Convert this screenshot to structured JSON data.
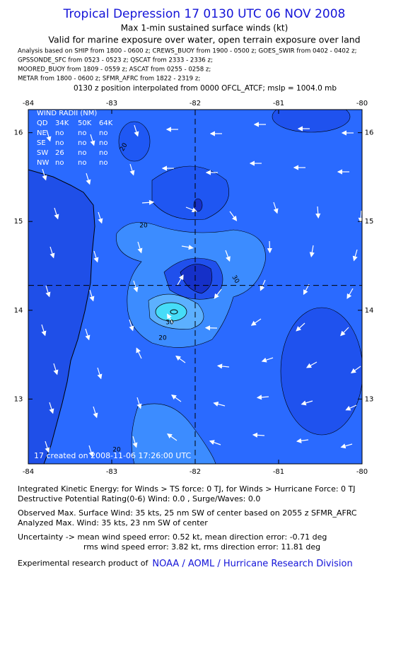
{
  "header": {
    "title": "Tropical Depression 17 0130 UTC 06 NOV 2008",
    "subtitle": "Max 1-min sustained surface winds (kt)",
    "validity": "Valid for marine exposure over water, open terrain exposure over land",
    "analysis": [
      "Analysis based on  SHIP from 1800 - 0600 z;  CREWS_BUOY from 1900 - 0500 z;  GOES_SWIR from 0402 - 0402 z;",
      "GPSSONDE_SFC from 0523 - 0523 z;  QSCAT from 2333 - 2336 z;",
      "MOORED_BUOY from 1809 - 0559 z;  ASCAT from 0255 - 0258 z;",
      "METAR from 1800 - 0600 z;  SFMR_AFRC from 1822 - 2319 z;"
    ],
    "position_note": "0130 z position interpolated from 0000 OFCL_ATCF; mslp = 1004.0 mb"
  },
  "map": {
    "xlim": [
      -84,
      -80
    ],
    "ylim": [
      12.27,
      16.26
    ],
    "xticks": [
      -84,
      -83,
      -82,
      -81,
      -80
    ],
    "yticks": [
      13,
      14,
      15,
      16
    ],
    "center": {
      "lon": -82.0,
      "lat": 14.28
    },
    "contour_labels": [
      "20",
      "20",
      "30",
      "20",
      "30",
      "20"
    ],
    "wind_radii": {
      "title": "WIND RADII (NM)",
      "header": [
        "QD",
        "34K",
        "50K",
        "64K"
      ],
      "rows": [
        [
          "NE",
          "no",
          "no",
          "no"
        ],
        [
          "SE",
          "no",
          "no",
          "no"
        ],
        [
          "SW",
          "26",
          "no",
          "no"
        ],
        [
          "NW",
          "no",
          "no",
          "no"
        ]
      ]
    },
    "stamp": "17   created on 2008-11-06 17:26:00 UTC"
  },
  "footer": {
    "lines": [
      "Integrated Kinetic Energy:  for Winds > TS force: 0 TJ,  for Winds > Hurricane Force: 0 TJ",
      "Destructive Potential Rating(0-6)   Wind: 0.0 , Surge/Waves: 0.0",
      "Observed Max. Surface Wind: 35 kts, 25 nm SW of center based on 2055 z SFMR_AFRC",
      "Analyzed Max. Wind: 35 kts, 23 nm SW of center",
      "Uncertainty -> mean wind speed error: 0.52 kt,   mean direction error:  -0.71 deg",
      "rms wind speed error: 3.82 kt,   rms direction error: 11.81 deg"
    ],
    "credit_prefix": "Experimental research product of",
    "credit_link": "NOAA / AOML / Hurricane Research Division"
  }
}
